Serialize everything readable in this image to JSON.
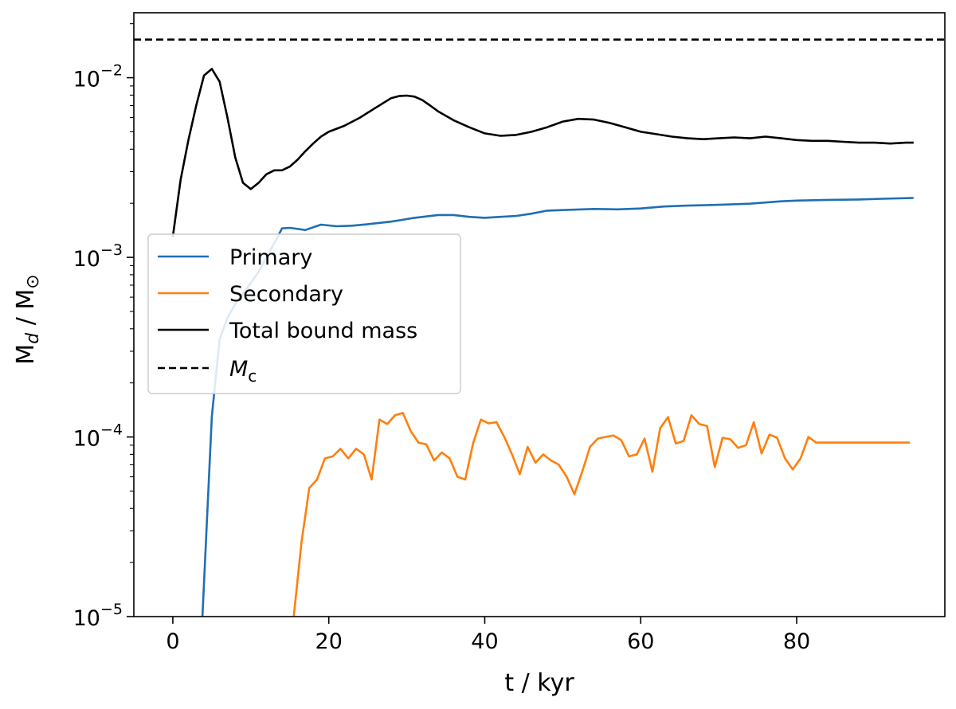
{
  "chart_data": {
    "type": "line",
    "title": "",
    "xlabel": "t / kyr",
    "ylabel": "M_d / M_⊙",
    "yscale": "log",
    "xlim": [
      -5.0,
      99.0
    ],
    "ylim": [
      1e-05,
      0.023
    ],
    "grid": false,
    "legend_position": "center-left",
    "x_ticks": [
      0,
      20,
      40,
      60,
      80
    ],
    "x_tick_labels": [
      "0",
      "20",
      "40",
      "60",
      "80"
    ],
    "y_ticks": [
      {
        "value": 1e-05,
        "base": "10",
        "exp": "−5"
      },
      {
        "value": 0.0001,
        "base": "10",
        "exp": "−4"
      },
      {
        "value": 0.001,
        "base": "10",
        "exp": "−3"
      },
      {
        "value": 0.01,
        "base": "10",
        "exp": "−2"
      }
    ],
    "series": [
      {
        "name": "Primary",
        "color": "#1f6fb4",
        "style": "solid",
        "x": [
          3.8,
          5.0,
          6.0,
          7.0,
          8.0,
          9.0,
          10.0,
          11.0,
          12.0,
          13.0,
          14.0,
          15.0,
          17.0,
          19.0,
          21.0,
          23.0,
          25.0,
          28.0,
          31.0,
          34.0,
          36.0,
          38.0,
          40.0,
          42.0,
          44.0,
          46.0,
          48.0,
          51.0,
          54.0,
          57.0,
          60.0,
          63.0,
          66.0,
          70.0,
          74.0,
          78.0,
          80.0,
          84.0,
          88.0,
          91.0,
          95.0
        ],
        "y": [
          1e-05,
          0.00013,
          0.00035,
          0.00046,
          0.00055,
          0.00063,
          0.00072,
          0.00083,
          0.001,
          0.0012,
          0.00145,
          0.00146,
          0.00142,
          0.00152,
          0.00149,
          0.0015,
          0.00153,
          0.00158,
          0.00166,
          0.00172,
          0.00172,
          0.00168,
          0.00166,
          0.00168,
          0.0017,
          0.00175,
          0.00182,
          0.00184,
          0.00186,
          0.00185,
          0.00187,
          0.00192,
          0.00194,
          0.00196,
          0.00199,
          0.00205,
          0.00207,
          0.00209,
          0.0021,
          0.00212,
          0.00214
        ]
      },
      {
        "name": "Secondary",
        "color": "#ff7f0e",
        "style": "solid",
        "x": [
          15.5,
          16.5,
          17.5,
          18.5,
          19.5,
          20.5,
          21.5,
          22.5,
          23.5,
          24.5,
          25.5,
          26.5,
          27.5,
          28.5,
          29.5,
          30.5,
          31.5,
          32.5,
          33.5,
          34.5,
          35.5,
          36.5,
          37.5,
          38.5,
          39.5,
          40.5,
          41.5,
          42.5,
          43.5,
          44.5,
          45.5,
          46.5,
          47.5,
          48.5,
          49.5,
          50.5,
          51.5,
          52.5,
          53.5,
          54.5,
          55.5,
          56.5,
          57.5,
          58.5,
          59.5,
          60.5,
          61.5,
          62.5,
          63.5,
          64.5,
          65.5,
          66.5,
          67.5,
          68.5,
          69.5,
          70.5,
          71.5,
          72.5,
          73.5,
          74.5,
          75.5,
          76.5,
          77.5,
          78.5,
          79.5,
          80.5,
          81.5,
          82.5,
          83.5,
          84.5,
          85.5,
          86.5,
          87.5,
          88.5,
          89.5,
          90.5,
          91.5,
          92.5,
          93.5,
          94.5
        ],
        "y": [
          1e-05,
          2.6e-05,
          5.2e-05,
          5.8e-05,
          7.6e-05,
          7.8e-05,
          8.6e-05,
          7.6e-05,
          8.6e-05,
          8e-05,
          5.8e-05,
          0.000125,
          0.000118,
          0.000132,
          0.000136,
          0.000108,
          9.3e-05,
          9.1e-05,
          7.4e-05,
          8.2e-05,
          7.6e-05,
          6e-05,
          5.8e-05,
          9.2e-05,
          0.000125,
          0.000119,
          0.000121,
          0.0001,
          8e-05,
          6.2e-05,
          8.8e-05,
          7.2e-05,
          8e-05,
          7.4e-05,
          7e-05,
          6e-05,
          4.8e-05,
          6.4e-05,
          8.8e-05,
          9.8e-05,
          0.0001,
          0.000102,
          9.6e-05,
          7.8e-05,
          8e-05,
          9.8e-05,
          6.4e-05,
          0.000112,
          0.000129,
          9.2e-05,
          9.5e-05,
          0.000132,
          0.000118,
          0.000115,
          6.8e-05,
          9.9e-05,
          9.7e-05,
          8.7e-05,
          9e-05,
          0.000121,
          8.1e-05,
          0.000103,
          9.9e-05,
          7.6e-05,
          6.6e-05,
          7.6e-05,
          0.0001,
          9.3e-05,
          9.3e-05,
          9.3e-05,
          9.3e-05,
          9.3e-05,
          9.3e-05,
          9.3e-05,
          9.3e-05,
          9.3e-05,
          9.3e-05,
          9.3e-05,
          9.3e-05,
          9.3e-05
        ],
        "x_trim": 79.5
      },
      {
        "name": "Total bound mass",
        "color": "#000000",
        "style": "solid",
        "x": [
          0.0,
          1.0,
          2.0,
          3.0,
          4.0,
          5.0,
          6.0,
          7.0,
          8.0,
          9.0,
          10.0,
          11.0,
          12.0,
          13.0,
          14.0,
          15.0,
          16.0,
          17.0,
          18.0,
          19.0,
          20.0,
          22.0,
          24.0,
          26.0,
          28.0,
          29.0,
          30.0,
          31.0,
          32.0,
          33.0,
          34.0,
          36.0,
          38.0,
          40.0,
          42.0,
          44.0,
          46.0,
          48.0,
          50.0,
          52.0,
          54.0,
          56.0,
          58.0,
          60.0,
          62.0,
          64.0,
          66.0,
          68.0,
          70.0,
          72.0,
          74.0,
          76.0,
          78.0,
          80.0,
          82.0,
          84.0,
          86.0,
          88.0,
          90.0,
          92.0,
          94.0,
          95.0
        ],
        "y": [
          0.0013,
          0.0027,
          0.0045,
          0.007,
          0.0103,
          0.0112,
          0.0095,
          0.006,
          0.0036,
          0.0026,
          0.0024,
          0.0026,
          0.0029,
          0.00305,
          0.00305,
          0.0032,
          0.0035,
          0.0039,
          0.0043,
          0.0047,
          0.005,
          0.0054,
          0.006,
          0.0068,
          0.0077,
          0.0079,
          0.00795,
          0.00785,
          0.0075,
          0.007,
          0.0065,
          0.0058,
          0.0053,
          0.0049,
          0.00475,
          0.0048,
          0.005,
          0.0053,
          0.0057,
          0.0059,
          0.00585,
          0.0056,
          0.0053,
          0.005,
          0.00485,
          0.0047,
          0.0046,
          0.00455,
          0.0046,
          0.00465,
          0.0046,
          0.0047,
          0.0046,
          0.0045,
          0.00445,
          0.00445,
          0.0044,
          0.00435,
          0.00435,
          0.0043,
          0.00435,
          0.00435
        ]
      },
      {
        "name": "Mc",
        "color": "#000000",
        "style": "dashed",
        "constant": 0.0163
      }
    ],
    "legend": [
      {
        "series": "Primary",
        "label": "Primary",
        "italic": false
      },
      {
        "series": "Secondary",
        "label": "Secondary",
        "italic": false
      },
      {
        "series": "Total bound mass",
        "label": "Total bound mass",
        "italic": false
      },
      {
        "series": "Mc",
        "label": "M",
        "sub": "c",
        "italic": true
      }
    ]
  }
}
